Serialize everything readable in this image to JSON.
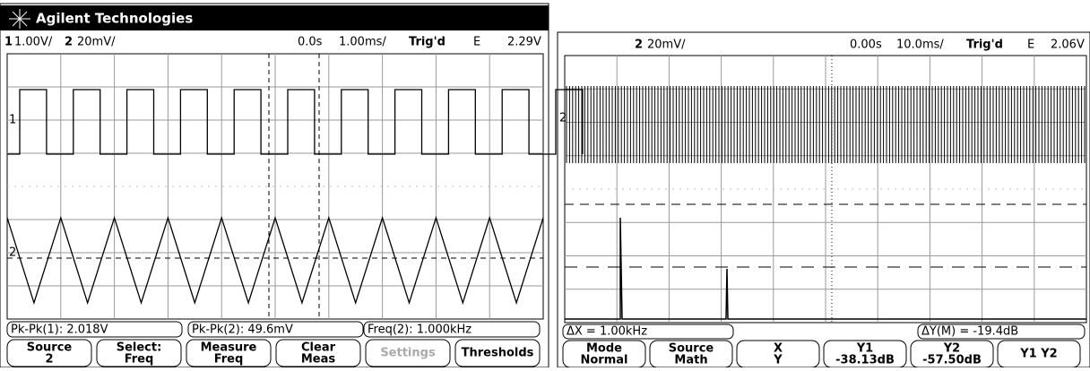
{
  "left": {
    "header": "Agilent Technologies",
    "status": [
      "1",
      "1.00V/",
      "2",
      "20mV/",
      "0.0s",
      "1.00ms/",
      "Trig'd",
      "E",
      "2.29V"
    ],
    "markers": [
      "1",
      "2"
    ],
    "measurements": [
      "Pk-Pk(1): 2.018V",
      "Pk-Pk(2): 49.6mV",
      "Freq(2): 1.000kHz"
    ],
    "softkeys": [
      [
        "Source",
        "2"
      ],
      [
        "Select:",
        "Freq"
      ],
      [
        "Measure",
        "Freq"
      ],
      [
        "Clear",
        "Meas"
      ],
      [
        "Settings"
      ],
      [
        "Thresholds"
      ]
    ]
  },
  "right": {
    "status": [
      "2",
      "20mV/",
      "0.00s",
      "10.0ms/",
      "Trig'd",
      "E",
      "2.06V"
    ],
    "markers": [
      "2"
    ],
    "measurements": [
      "ΔX = 1.00kHz",
      "ΔY(M) = -19.4dB"
    ],
    "softkeys": [
      [
        "Mode",
        "Normal"
      ],
      [
        "Source",
        "Math"
      ],
      [
        "X",
        "Y"
      ],
      [
        "Y1",
        "-38.13dB"
      ],
      [
        "Y2",
        "-57.50dB"
      ],
      [
        "Y1 Y2"
      ]
    ]
  }
}
